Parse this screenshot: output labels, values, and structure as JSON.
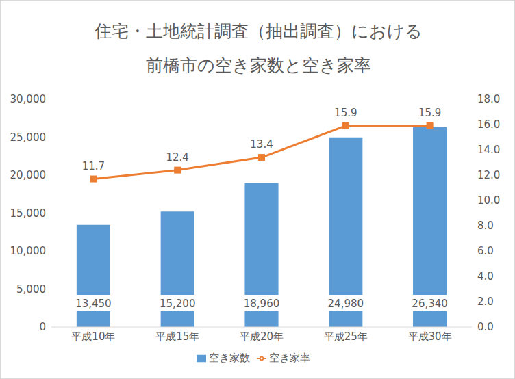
{
  "chart_data": {
    "type": "bar",
    "title": "住宅・土地統計調査（抽出調査）における\n前橋市の空き家数と空き家率",
    "categories": [
      "平成10年",
      "平成15年",
      "平成20年",
      "平成25年",
      "平成30年"
    ],
    "series": [
      {
        "name": "空き家数",
        "type": "bar",
        "color": "#5B9BD5",
        "values": [
          13450,
          15200,
          18960,
          24980,
          26340
        ],
        "value_labels": [
          "13,450",
          "15,200",
          "18,960",
          "24,980",
          "26,340"
        ]
      },
      {
        "name": "空き家率",
        "type": "line",
        "axis": "y2",
        "color": "#ED7D31",
        "marker": "square",
        "values": [
          11.7,
          12.4,
          13.4,
          15.9,
          15.9
        ]
      }
    ],
    "ylim": [
      0,
      30000
    ],
    "yticks": [
      0,
      {
        "value": 5000,
        "label": "5,000"
      },
      {
        "value": 10000,
        "label": "10,000"
      },
      {
        "value": 15000,
        "label": "15,000"
      },
      {
        "value": 20000,
        "label": "20,000"
      },
      {
        "value": 25000,
        "label": "25,000"
      },
      {
        "value": 30000,
        "label": "30,000"
      }
    ],
    "y2lim": [
      0,
      18
    ],
    "y2ticks": [
      {
        "value": 0,
        "label": "0.0"
      },
      {
        "value": 2,
        "label": "2.0"
      },
      {
        "value": 4,
        "label": "4.0"
      },
      {
        "value": 6,
        "label": "6.0"
      },
      {
        "value": 8,
        "label": "8.0"
      },
      {
        "value": 10,
        "label": "10.0"
      },
      {
        "value": 12,
        "label": "12.0"
      },
      {
        "value": 14,
        "label": "14.0"
      },
      {
        "value": 16,
        "label": "16.0"
      },
      {
        "value": 18,
        "label": "18.0"
      }
    ],
    "data_labels": true,
    "grid": false,
    "legend": "bottom"
  }
}
